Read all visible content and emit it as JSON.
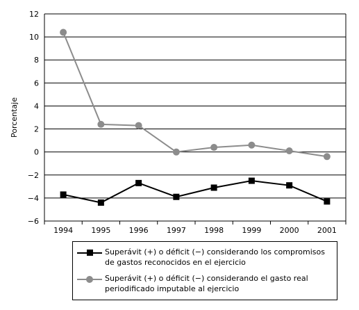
{
  "chart_data": {
    "type": "line",
    "x": [
      "1994",
      "1995",
      "1996",
      "1997",
      "1998",
      "1999",
      "2000",
      "2001"
    ],
    "series": [
      {
        "name": "Superávit (+) o déficit (−) considerando los compromisos de gastos reconocidos en el ejercicio",
        "name_lines": [
          "Superávit (+) o déficit (−) considerando los compromisos",
          "de gastos reconocidos en el ejercicio"
        ],
        "marker": "square",
        "color": "#000000",
        "values": [
          -3.7,
          -4.4,
          -2.7,
          -3.9,
          -3.1,
          -2.5,
          -2.9,
          -4.3
        ]
      },
      {
        "name": "Superávit (+) o déficit (−) considerando el gasto real periodificado imputable al ejercicio",
        "name_lines": [
          "Superávit (+) o déficit (−) considerando el gasto real",
          "periodificado imputable al ejercicio"
        ],
        "marker": "circle",
        "color": "#8c8c8c",
        "values": [
          10.4,
          2.4,
          2.3,
          0.0,
          0.4,
          0.6,
          0.1,
          -0.4
        ]
      }
    ],
    "ylabel": "Porcentaje",
    "ylim": [
      -6,
      12
    ],
    "yticks": [
      -6,
      -4,
      -2,
      0,
      2,
      4,
      6,
      8,
      10,
      12
    ],
    "ytick_labels": [
      "−6",
      "−4",
      "−2",
      "0",
      "2",
      "4",
      "6",
      "8",
      "10",
      "12"
    ],
    "grid": "horizontal",
    "legend_position": "bottom"
  }
}
